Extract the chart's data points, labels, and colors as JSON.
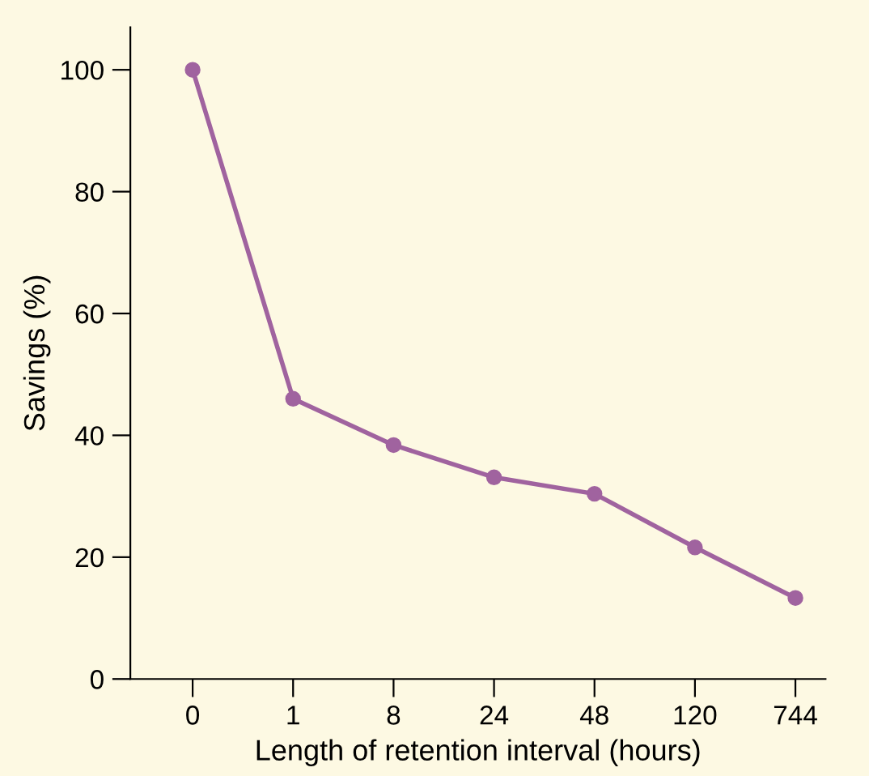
{
  "chart_data": {
    "type": "line",
    "xlabel": "Length of retention interval (hours)",
    "ylabel": "Savings (%)",
    "categories": [
      "0",
      "1",
      "8",
      "24",
      "48",
      "120",
      "744"
    ],
    "series": [
      {
        "color": "#a0639f",
        "values": [
          100,
          46,
          38.4,
          33.1,
          30.4,
          21.6,
          13.3
        ]
      }
    ],
    "ylim": [
      0,
      107
    ],
    "yticks": [
      0,
      20,
      40,
      60,
      80,
      100
    ],
    "grid": false,
    "legend": false,
    "marker": "circle",
    "line_style": "solid"
  }
}
